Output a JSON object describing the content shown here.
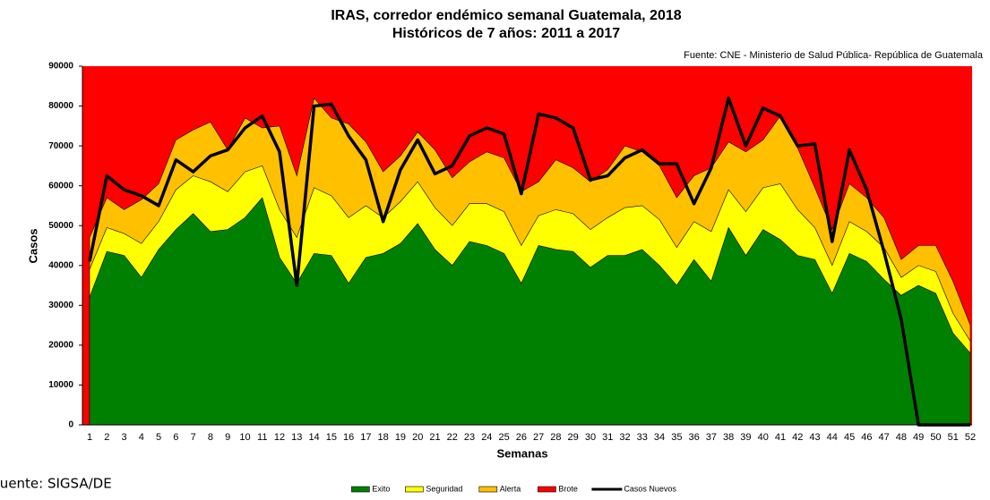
{
  "chart_data": {
    "type": "area",
    "title": "IRAS, corredor endémico semanal Guatemala,  2018",
    "subtitle": "Históricos  de 7 años: 2011 a 2017",
    "source_top": "Fuente: CNE - Ministerio de Salud Pública- República de Guatemala",
    "source_bottom": "Fuente: SIGSA/DE",
    "x_label": "Semanas",
    "y_label": "Casos",
    "categories": [
      "1",
      "2",
      "3",
      "4",
      "5",
      "6",
      "7",
      "8",
      "9",
      "10",
      "11",
      "12",
      "13",
      "14",
      "15",
      "16",
      "17",
      "18",
      "19",
      "20",
      "21",
      "22",
      "23",
      "24",
      "25",
      "26",
      "27",
      "28",
      "29",
      "30",
      "31",
      "32",
      "33",
      "34",
      "35",
      "36",
      "37",
      "38",
      "39",
      "40",
      "41",
      "42",
      "43",
      "44",
      "45",
      "46",
      "47",
      "48",
      "49",
      "50",
      "51",
      "52"
    ],
    "ylim": [
      0,
      90000
    ],
    "yticks": [
      0,
      10000,
      20000,
      30000,
      40000,
      50000,
      60000,
      70000,
      80000,
      90000
    ],
    "legend": "bottom",
    "series": [
      {
        "name": "Exito",
        "color": "#008000",
        "values": [
          32000,
          43500,
          42500,
          37000,
          44000,
          49000,
          53000,
          48500,
          49000,
          52000,
          57000,
          42000,
          35500,
          43000,
          42500,
          35500,
          42000,
          43000,
          45500,
          50500,
          44000,
          40000,
          46000,
          45000,
          43000,
          35500,
          45000,
          44000,
          43500,
          39500,
          42500,
          42500,
          44000,
          40000,
          35000,
          41500,
          36000,
          49500,
          42500,
          49000,
          46500,
          42500,
          41500,
          33000,
          43000,
          41000,
          36500,
          32500,
          35000,
          33000,
          23000,
          18000
        ]
      },
      {
        "name": "Seguridad",
        "color": "#ffff00",
        "values": [
          39000,
          49500,
          48000,
          45500,
          51000,
          59000,
          62500,
          61000,
          58500,
          63500,
          65000,
          54000,
          47000,
          59500,
          57500,
          52000,
          55000,
          52000,
          56000,
          61000,
          54500,
          50000,
          55500,
          55500,
          53500,
          45000,
          52500,
          54000,
          53000,
          49000,
          52000,
          54500,
          55000,
          51500,
          44500,
          51000,
          48500,
          59000,
          53500,
          59500,
          60500,
          54000,
          49500,
          40000,
          51000,
          48500,
          44500,
          37000,
          40000,
          38500,
          28000,
          21000
        ]
      },
      {
        "name": "Alerta",
        "color": "#ffc000",
        "values": [
          47000,
          57000,
          54000,
          56500,
          60500,
          71500,
          74000,
          76000,
          69000,
          77000,
          74500,
          75000,
          62500,
          82000,
          77000,
          75500,
          71000,
          63500,
          67500,
          73500,
          69000,
          62000,
          66000,
          68500,
          67000,
          58500,
          61000,
          66500,
          64500,
          61000,
          64000,
          70000,
          68500,
          65000,
          57000,
          62500,
          64500,
          71000,
          68500,
          71500,
          77500,
          69500,
          59500,
          49000,
          60500,
          57000,
          52000,
          41500,
          45000,
          45000,
          36000,
          25000
        ]
      },
      {
        "name": "Brote",
        "color": "#ff0000"
      },
      {
        "name": "Casos Nuevos",
        "color": "#000000",
        "type": "line",
        "values": [
          41000,
          62500,
          59000,
          57500,
          55000,
          66500,
          63500,
          67500,
          69000,
          74500,
          77500,
          68500,
          35000,
          80000,
          80500,
          72500,
          66500,
          51000,
          64000,
          71500,
          63000,
          65000,
          72500,
          74500,
          73000,
          58000,
          78000,
          77000,
          74500,
          61500,
          62500,
          67000,
          69000,
          65500,
          65500,
          55500,
          64500,
          82000,
          70000,
          79500,
          77500,
          70000,
          70500,
          46000,
          69000,
          59000,
          43500,
          26500,
          0,
          0,
          0,
          0
        ]
      }
    ]
  }
}
